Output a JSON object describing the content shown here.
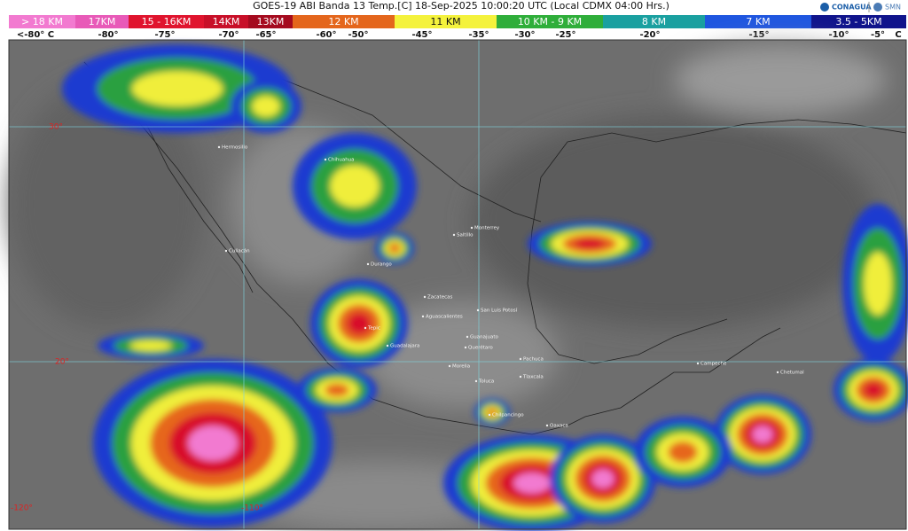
{
  "header": {
    "title": "GOES-19 ABI Banda 13 Temp.[C] 18-Sep-2025 10:00:20 UTC (Local CDMX  04:00 Hrs.)",
    "logos": [
      "CONAGUA",
      "SMN"
    ]
  },
  "legend": {
    "bands": [
      "> 18 KM",
      "17KM",
      "15 - 16KM",
      "14KM",
      "13KM",
      "12 KM",
      "11 KM",
      "10 KM - 9 KM",
      "8 KM",
      "7 KM",
      "3.5 - 5KM"
    ],
    "temps": [
      "<-80° C",
      "-80°",
      "-75°",
      "-70°",
      "-65°",
      "-60°",
      "-50°",
      "-45°",
      "-35°",
      "-30°",
      "-25°",
      "-20°",
      "-15°",
      "-10°",
      "-5°",
      "C"
    ]
  },
  "map": {
    "grid_labels": [
      "30°",
      "20°",
      "-120°",
      "-110°"
    ],
    "cities": [
      "Hermosillo",
      "Chihuahua",
      "Culiacán",
      "Durango",
      "Saltillo",
      "Monterrey",
      "Zacatecas",
      "San Luis Potosí",
      "Aguascalientes",
      "Tepic",
      "Guadalajara",
      "Guanajuato",
      "Querétaro",
      "Pachuca",
      "Morelia",
      "Toluca",
      "Tlaxcala",
      "Chilpancingo",
      "Oaxaca",
      "Campeche",
      "Chetumal"
    ]
  }
}
